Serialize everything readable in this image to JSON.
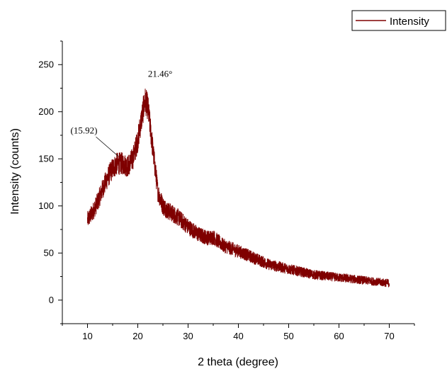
{
  "chart_data": {
    "type": "line",
    "xlabel": "2 theta (degree)",
    "ylabel": "Intensity (counts)",
    "xlim": [
      5,
      75
    ],
    "ylim": [
      -25,
      275
    ],
    "x_ticks": [
      10,
      20,
      30,
      40,
      50,
      60,
      70
    ],
    "y_ticks": [
      0,
      50,
      100,
      150,
      200,
      250
    ],
    "grid": false,
    "legend": {
      "position": "top-right",
      "entries": [
        "Intensity"
      ]
    },
    "line_color": "#7f0000",
    "series": [
      {
        "name": "Intensity",
        "x_range": [
          10,
          70
        ],
        "noise_amplitude": 10,
        "profile": [
          [
            10,
            85
          ],
          [
            11,
            93
          ],
          [
            12,
            104
          ],
          [
            13,
            118
          ],
          [
            14,
            130
          ],
          [
            15,
            140
          ],
          [
            15.92,
            145
          ],
          [
            17,
            145
          ],
          [
            18,
            142
          ],
          [
            19,
            150
          ],
          [
            20,
            170
          ],
          [
            21,
            200
          ],
          [
            21.46,
            212
          ],
          [
            22,
            205
          ],
          [
            23,
            160
          ],
          [
            24,
            115
          ],
          [
            25,
            100
          ],
          [
            26,
            95
          ],
          [
            28,
            88
          ],
          [
            30,
            78
          ],
          [
            32,
            70
          ],
          [
            34,
            66
          ],
          [
            35,
            67
          ],
          [
            37,
            58
          ],
          [
            40,
            52
          ],
          [
            43,
            45
          ],
          [
            46,
            38
          ],
          [
            50,
            33
          ],
          [
            55,
            27
          ],
          [
            60,
            24
          ],
          [
            65,
            21
          ],
          [
            70,
            18
          ]
        ]
      }
    ],
    "annotations": [
      {
        "text": "21.46°",
        "x": 21.46,
        "y": 237
      },
      {
        "text": "(15.92)",
        "x": 15.92,
        "y": 150
      }
    ]
  }
}
